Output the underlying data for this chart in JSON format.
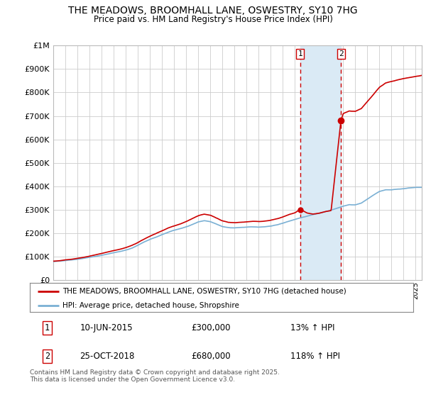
{
  "title": "THE MEADOWS, BROOMHALL LANE, OSWESTRY, SY10 7HG",
  "subtitle": "Price paid vs. HM Land Registry's House Price Index (HPI)",
  "ylim": [
    0,
    1000000
  ],
  "xlim_start": 1995.0,
  "xlim_end": 2025.5,
  "sale1_date": 2015.44,
  "sale1_price": 300000,
  "sale2_date": 2018.81,
  "sale2_price": 680000,
  "legend_line1": "THE MEADOWS, BROOMHALL LANE, OSWESTRY, SY10 7HG (detached house)",
  "legend_line2": "HPI: Average price, detached house, Shropshire",
  "table_row1": [
    "1",
    "10-JUN-2015",
    "£300,000",
    "13% ↑ HPI"
  ],
  "table_row2": [
    "2",
    "25-OCT-2018",
    "£680,000",
    "118% ↑ HPI"
  ],
  "footer": "Contains HM Land Registry data © Crown copyright and database right 2025.\nThis data is licensed under the Open Government Licence v3.0.",
  "line1_color": "#cc0000",
  "line2_color": "#7ab0d4",
  "shade_color": "#daeaf5",
  "vline_color": "#cc0000",
  "background_color": "#ffffff",
  "grid_color": "#cccccc",
  "hpi_knots": [
    1995,
    1995.5,
    1996,
    1996.5,
    1997,
    1997.5,
    1998,
    1998.5,
    1999,
    1999.5,
    2000,
    2000.5,
    2001,
    2001.5,
    2002,
    2002.5,
    2003,
    2003.5,
    2004,
    2004.5,
    2005,
    2005.5,
    2006,
    2006.5,
    2007,
    2007.5,
    2008,
    2008.5,
    2009,
    2009.5,
    2010,
    2010.5,
    2011,
    2011.5,
    2012,
    2012.5,
    2013,
    2013.5,
    2014,
    2014.5,
    2015,
    2015.5,
    2016,
    2016.5,
    2017,
    2017.5,
    2018,
    2018.5,
    2019,
    2019.5,
    2020,
    2020.5,
    2021,
    2021.5,
    2022,
    2022.5,
    2023,
    2023.5,
    2024,
    2024.5,
    2025
  ],
  "hpi_vals": [
    78000,
    80000,
    83000,
    86000,
    89000,
    93000,
    97000,
    101000,
    106000,
    111000,
    117000,
    122000,
    128000,
    136000,
    148000,
    162000,
    173000,
    182000,
    193000,
    203000,
    212000,
    219000,
    226000,
    236000,
    247000,
    252000,
    248000,
    238000,
    227000,
    222000,
    221000,
    223000,
    224000,
    225000,
    224000,
    226000,
    229000,
    234000,
    241000,
    250000,
    258000,
    266000,
    272000,
    279000,
    285000,
    291000,
    298000,
    306000,
    314000,
    321000,
    320000,
    328000,
    345000,
    362000,
    378000,
    385000,
    385000,
    388000,
    390000,
    393000,
    395000
  ],
  "prop_knots": [
    1995,
    1995.5,
    1996,
    1996.5,
    1997,
    1997.5,
    1998,
    1998.5,
    1999,
    1999.5,
    2000,
    2000.5,
    2001,
    2001.5,
    2002,
    2002.5,
    2003,
    2003.5,
    2004,
    2004.5,
    2005,
    2005.5,
    2006,
    2006.5,
    2007,
    2007.5,
    2008,
    2008.5,
    2009,
    2009.5,
    2010,
    2010.5,
    2011,
    2011.5,
    2012,
    2012.5,
    2013,
    2013.5,
    2014,
    2014.5,
    2015,
    2015.44,
    2016,
    2016.5,
    2017,
    2017.5,
    2018,
    2018.81,
    2019,
    2019.5,
    2020,
    2020.5,
    2021,
    2021.5,
    2022,
    2022.5,
    2023,
    2023.5,
    2024,
    2024.5,
    2025,
    2025.5
  ],
  "prop_vals": [
    80000,
    82000,
    85000,
    88000,
    92000,
    96000,
    101000,
    106000,
    111000,
    117000,
    123000,
    129000,
    136000,
    145000,
    158000,
    173000,
    185000,
    196000,
    207000,
    219000,
    228000,
    237000,
    247000,
    260000,
    272000,
    278000,
    273000,
    262000,
    249000,
    243000,
    242000,
    244000,
    246000,
    248000,
    247000,
    249000,
    253000,
    259000,
    267000,
    277000,
    285000,
    300000,
    285000,
    281000,
    285000,
    291000,
    296000,
    680000,
    710000,
    720000,
    718000,
    730000,
    760000,
    790000,
    820000,
    838000,
    845000,
    852000,
    858000,
    863000,
    868000,
    873000
  ]
}
